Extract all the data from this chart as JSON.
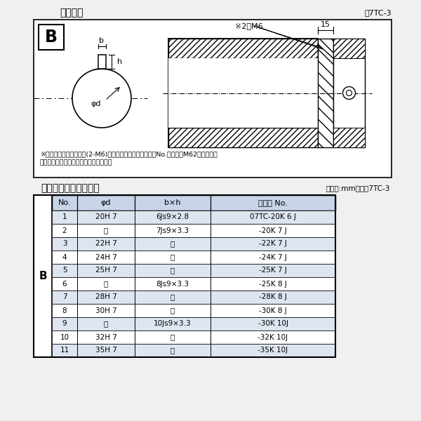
{
  "title_diagram": "軸穴形状",
  "fig_label": "図7TC-3",
  "note_line1": "※セットボルト用タップ(2-M6)が必要な場合は右記コードNo.の末尾にM62を付ける。",
  "note_line2": "（セットボルトは付属されています。）",
  "table_title": "軸穴形状コードー覧表",
  "table_unit": "（単位:mm）　表7TC-3",
  "col_headers": [
    "No.",
    "φd",
    "b×h",
    "コード No."
  ],
  "row_label": "B",
  "rows": [
    [
      "1",
      "20H 7",
      "6Js9×2.8",
      "07TC-20K 6 J"
    ],
    [
      "2",
      "〃",
      "7Js9×3.3",
      "-20K 7 J"
    ],
    [
      "3",
      "22H 7",
      "〃",
      "-22K 7 J"
    ],
    [
      "4",
      "24H 7",
      "〃",
      "-24K 7 J"
    ],
    [
      "5",
      "25H 7",
      "〃",
      "-25K 7 J"
    ],
    [
      "6",
      "〃",
      "8Js9×3.3",
      "-25K 8 J"
    ],
    [
      "7",
      "28H 7",
      "〃",
      "-28K 8 J"
    ],
    [
      "8",
      "30H 7",
      "〃",
      "-30K 8 J"
    ],
    [
      "9",
      "〃",
      "10Js9×3.3",
      "-30K 10J"
    ],
    [
      "10",
      "32H 7",
      "〃",
      "-32K 10J"
    ],
    [
      "11",
      "35H 7",
      "〃",
      "-35K 10J"
    ]
  ],
  "bg_color": "#f0f0f0",
  "diagram_bg": "#ffffff",
  "table_header_bg": "#c8d4e8",
  "table_row_bg": "#dde5f0",
  "table_alt_bg": "#ffffff",
  "border_color": "#000000",
  "text_color": "#000000"
}
